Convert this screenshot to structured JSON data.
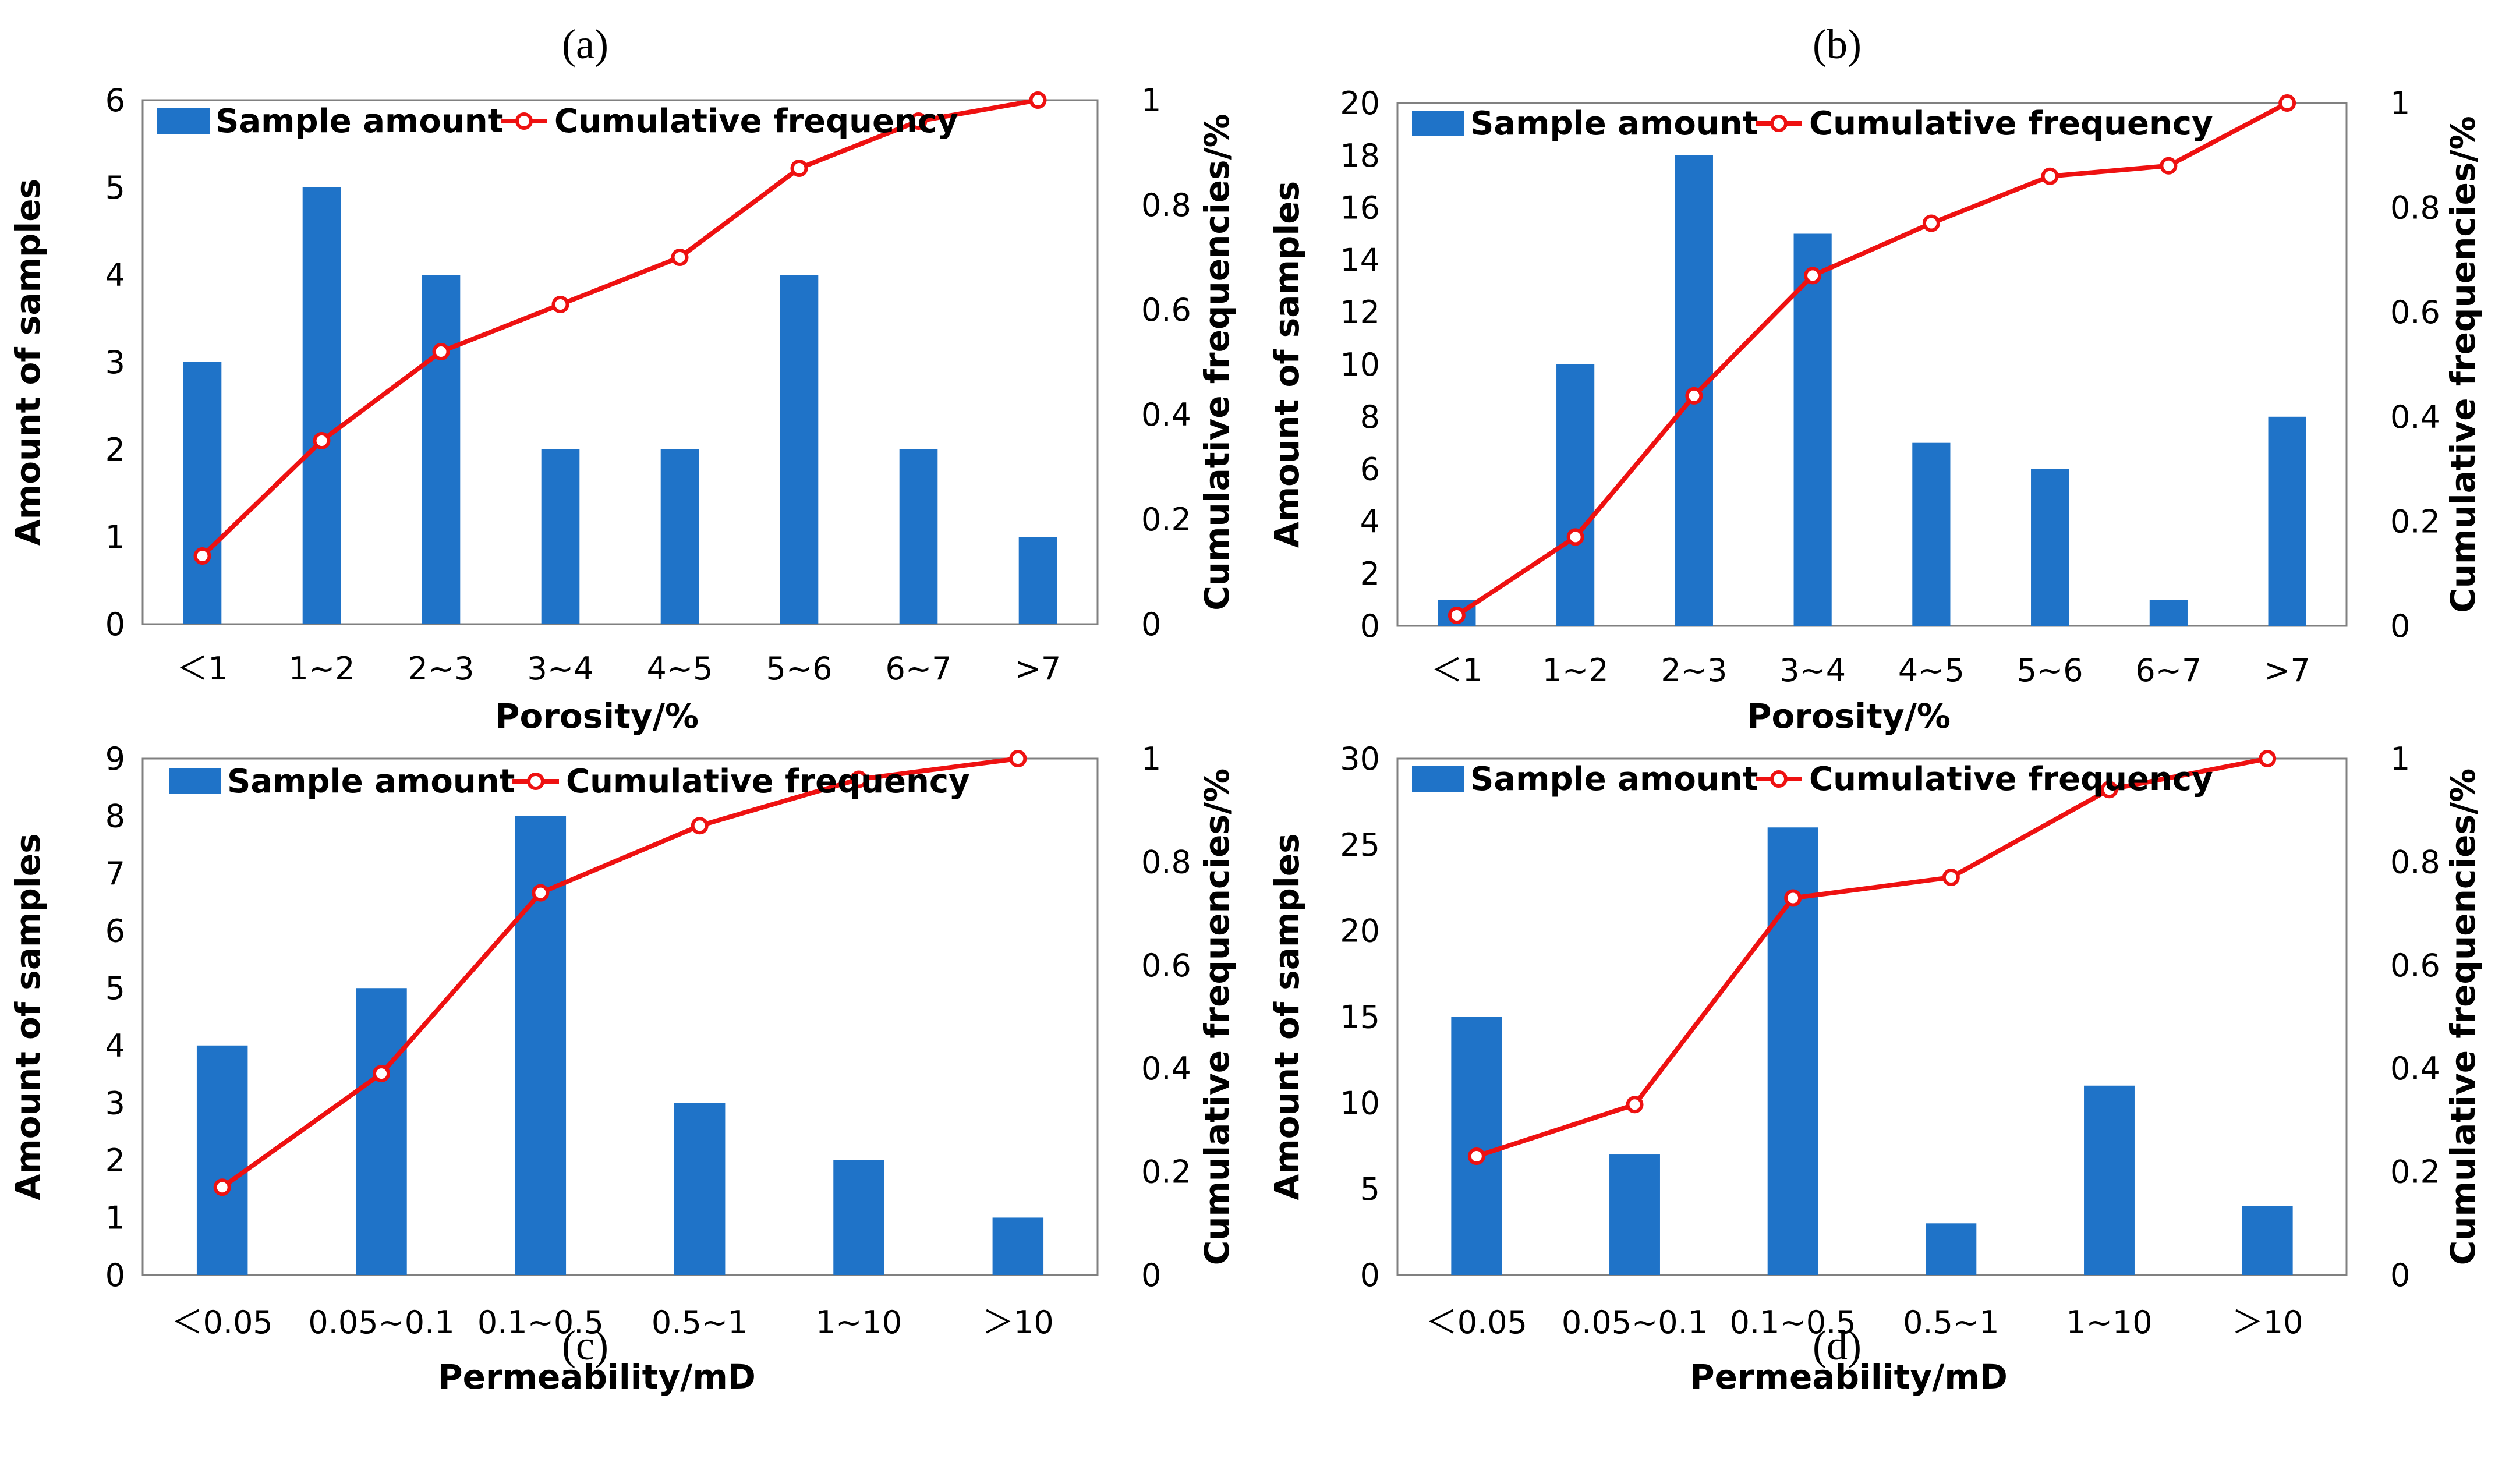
{
  "chart_data": [
    {
      "panel": "(a)",
      "type": "bar",
      "categories": [
        "＜1",
        "1~2",
        "2~3",
        "3~4",
        "4~5",
        "5~6",
        "6~7",
        ">7"
      ],
      "series": [
        {
          "name": "Sample amount",
          "type": "bar",
          "axis": "left",
          "values": [
            3,
            5,
            4,
            2,
            2,
            4,
            2,
            1
          ]
        },
        {
          "name": "Cumulative frequency",
          "type": "line",
          "axis": "right",
          "values": [
            0.13,
            0.35,
            0.52,
            0.61,
            0.7,
            0.87,
            0.96,
            1.0
          ]
        }
      ],
      "xlabel": "Porosity/%",
      "ylabel": "Amount of samples",
      "y2label": "Cumulative frequencies/%",
      "ylim": [
        0,
        6
      ],
      "yticks": [
        "0",
        "1",
        "2",
        "3",
        "4",
        "5",
        "6"
      ],
      "y2lim": [
        0,
        1
      ],
      "y2ticks": [
        "0",
        "0.2",
        "0.4",
        "0.6",
        "0.8",
        "1"
      ],
      "legend": "top"
    },
    {
      "panel": "(b)",
      "type": "bar",
      "categories": [
        "＜1",
        "1~2",
        "2~3",
        "3~4",
        "4~5",
        "5~6",
        "6~7",
        ">7"
      ],
      "series": [
        {
          "name": "Sample amount",
          "type": "bar",
          "axis": "left",
          "values": [
            1,
            10,
            18,
            15,
            7,
            6,
            1,
            8
          ]
        },
        {
          "name": "Cumulative frequency",
          "type": "line",
          "axis": "right",
          "values": [
            0.02,
            0.17,
            0.44,
            0.67,
            0.77,
            0.86,
            0.88,
            1.0
          ]
        }
      ],
      "xlabel": "Porosity/%",
      "ylabel": "Amount of samples",
      "y2label": "Cumulative frequencies/%",
      "ylim": [
        0,
        20
      ],
      "yticks": [
        "0",
        "2",
        "4",
        "6",
        "8",
        "10",
        "12",
        "14",
        "16",
        "18",
        "20"
      ],
      "y2lim": [
        0,
        1
      ],
      "y2ticks": [
        "0",
        "0.2",
        "0.4",
        "0.6",
        "0.8",
        "1"
      ],
      "legend": "top"
    },
    {
      "panel": "(c)",
      "type": "bar",
      "categories": [
        "＜0.05",
        "0.05~0.1",
        "0.1~0.5",
        "0.5~1",
        "1~10",
        "＞10"
      ],
      "series": [
        {
          "name": "Sample amount",
          "type": "bar",
          "axis": "left",
          "values": [
            4,
            5,
            8,
            3,
            2,
            1
          ]
        },
        {
          "name": "Cumulative frequency",
          "type": "line",
          "axis": "right",
          "values": [
            0.17,
            0.39,
            0.74,
            0.87,
            0.96,
            1.0
          ]
        }
      ],
      "xlabel": "Permeability/mD",
      "ylabel": "Amount of samples",
      "y2label": "Cumulative frequencies/%",
      "ylim": [
        0,
        9
      ],
      "yticks": [
        "0",
        "1",
        "2",
        "3",
        "4",
        "5",
        "6",
        "7",
        "8",
        "9"
      ],
      "y2lim": [
        0,
        1
      ],
      "y2ticks": [
        "0",
        "0.2",
        "0.4",
        "0.6",
        "0.8",
        "1"
      ],
      "legend": "top"
    },
    {
      "panel": "(d)",
      "type": "bar",
      "categories": [
        "＜0.05",
        "0.05~0.1",
        "0.1~0.5",
        "0.5~1",
        "1~10",
        "＞10"
      ],
      "series": [
        {
          "name": "Sample amount",
          "type": "bar",
          "axis": "left",
          "values": [
            15,
            7,
            26,
            3,
            11,
            4
          ]
        },
        {
          "name": "Cumulative frequency",
          "type": "line",
          "axis": "right",
          "values": [
            0.23,
            0.33,
            0.73,
            0.77,
            0.94,
            1.0
          ]
        }
      ],
      "xlabel": "Permeability/mD",
      "ylabel": "Amount of samples",
      "y2label": "Cumulative frequencies/%",
      "ylim": [
        0,
        30
      ],
      "yticks": [
        "0",
        "5",
        "10",
        "15",
        "20",
        "25",
        "30"
      ],
      "y2lim": [
        0,
        1
      ],
      "y2ticks": [
        "0",
        "0.2",
        "0.4",
        "0.6",
        "0.8",
        "1"
      ],
      "legend": "top"
    }
  ],
  "colors": {
    "bar": "#1f73c8",
    "line": "#ee1111"
  }
}
